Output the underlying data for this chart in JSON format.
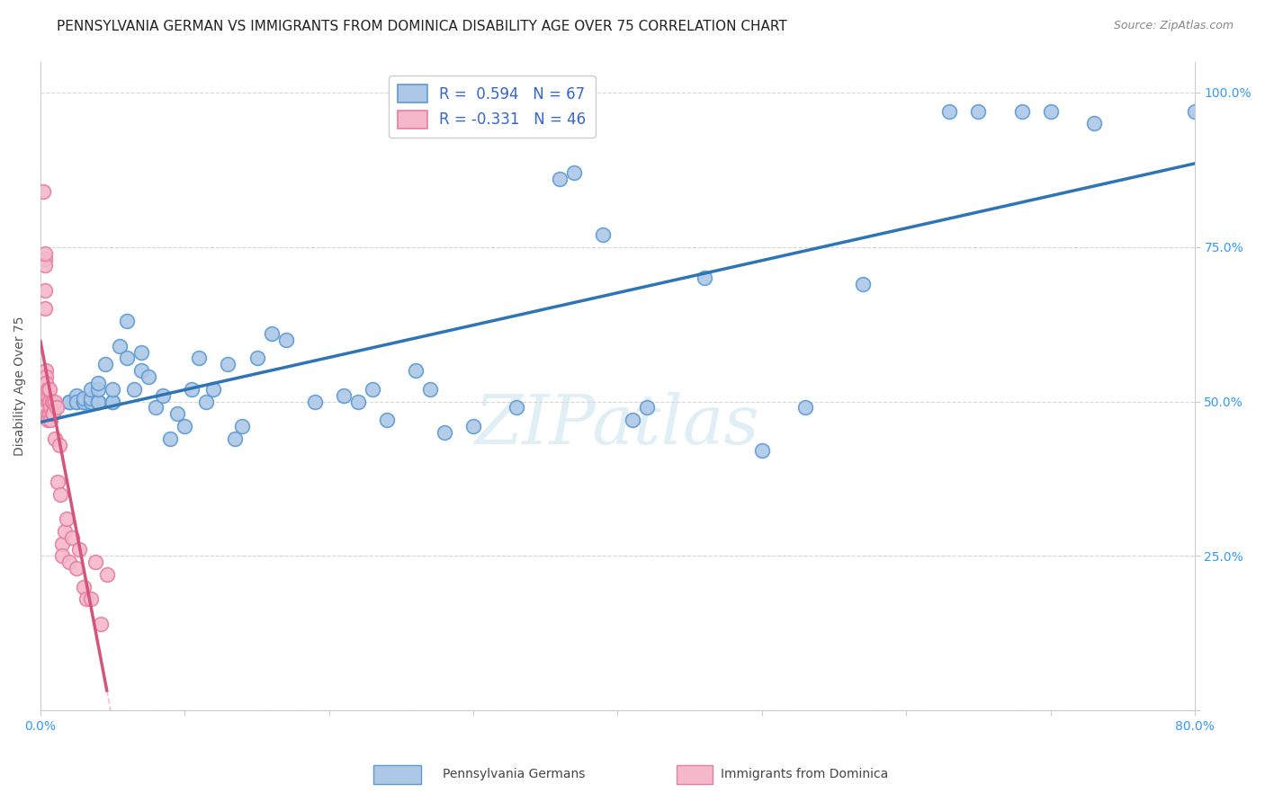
{
  "title": "PENNSYLVANIA GERMAN VS IMMIGRANTS FROM DOMINICA DISABILITY AGE OVER 75 CORRELATION CHART",
  "source": "Source: ZipAtlas.com",
  "ylabel": "Disability Age Over 75",
  "xlim": [
    0.0,
    0.8
  ],
  "ylim": [
    0.0,
    1.05
  ],
  "xticks": [
    0.0,
    0.1,
    0.2,
    0.3,
    0.4,
    0.5,
    0.6,
    0.7,
    0.8
  ],
  "xticklabels": [
    "0.0%",
    "",
    "",
    "",
    "",
    "",
    "",
    "",
    "80.0%"
  ],
  "yticks": [
    0.0,
    0.25,
    0.5,
    0.75,
    1.0
  ],
  "yticklabels_right": [
    "",
    "25.0%",
    "50.0%",
    "75.0%",
    "100.0%"
  ],
  "blue_R": 0.594,
  "blue_N": 67,
  "pink_R": -0.331,
  "pink_N": 46,
  "blue_color": "#adc8e6",
  "blue_edge_color": "#5b9bd5",
  "blue_line_color": "#2e75b6",
  "pink_color": "#f4b8ca",
  "pink_edge_color": "#e87da0",
  "pink_line_color": "#d4547a",
  "blue_scatter_x": [
    0.02,
    0.02,
    0.025,
    0.025,
    0.025,
    0.03,
    0.03,
    0.03,
    0.03,
    0.035,
    0.035,
    0.035,
    0.04,
    0.04,
    0.04,
    0.04,
    0.045,
    0.05,
    0.05,
    0.05,
    0.055,
    0.06,
    0.06,
    0.065,
    0.07,
    0.07,
    0.075,
    0.08,
    0.085,
    0.09,
    0.095,
    0.1,
    0.105,
    0.11,
    0.115,
    0.12,
    0.13,
    0.135,
    0.14,
    0.15,
    0.16,
    0.17,
    0.19,
    0.21,
    0.22,
    0.23,
    0.24,
    0.26,
    0.27,
    0.28,
    0.3,
    0.33,
    0.36,
    0.37,
    0.39,
    0.41,
    0.42,
    0.46,
    0.5,
    0.53,
    0.57,
    0.63,
    0.65,
    0.68,
    0.7,
    0.73,
    0.8
  ],
  "blue_scatter_y": [
    0.5,
    0.5,
    0.5,
    0.51,
    0.5,
    0.5,
    0.5,
    0.5,
    0.505,
    0.5,
    0.505,
    0.52,
    0.5,
    0.5,
    0.52,
    0.53,
    0.56,
    0.5,
    0.5,
    0.52,
    0.59,
    0.63,
    0.57,
    0.52,
    0.55,
    0.58,
    0.54,
    0.49,
    0.51,
    0.44,
    0.48,
    0.46,
    0.52,
    0.57,
    0.5,
    0.52,
    0.56,
    0.44,
    0.46,
    0.57,
    0.61,
    0.6,
    0.5,
    0.51,
    0.5,
    0.52,
    0.47,
    0.55,
    0.52,
    0.45,
    0.46,
    0.49,
    0.86,
    0.87,
    0.77,
    0.47,
    0.49,
    0.7,
    0.42,
    0.49,
    0.69,
    0.97,
    0.97,
    0.97,
    0.97,
    0.95,
    0.97
  ],
  "pink_scatter_x": [
    0.002,
    0.003,
    0.003,
    0.003,
    0.003,
    0.003,
    0.004,
    0.004,
    0.004,
    0.004,
    0.004,
    0.005,
    0.005,
    0.005,
    0.005,
    0.005,
    0.006,
    0.006,
    0.006,
    0.006,
    0.007,
    0.007,
    0.008,
    0.008,
    0.009,
    0.009,
    0.01,
    0.01,
    0.011,
    0.012,
    0.013,
    0.014,
    0.015,
    0.015,
    0.017,
    0.018,
    0.02,
    0.022,
    0.025,
    0.027,
    0.03,
    0.032,
    0.035,
    0.038,
    0.042,
    0.046
  ],
  "pink_scatter_y": [
    0.84,
    0.73,
    0.72,
    0.68,
    0.65,
    0.74,
    0.55,
    0.54,
    0.52,
    0.51,
    0.53,
    0.5,
    0.48,
    0.47,
    0.51,
    0.52,
    0.48,
    0.5,
    0.5,
    0.52,
    0.49,
    0.47,
    0.5,
    0.48,
    0.5,
    0.48,
    0.5,
    0.44,
    0.49,
    0.37,
    0.43,
    0.35,
    0.27,
    0.25,
    0.29,
    0.31,
    0.24,
    0.28,
    0.23,
    0.26,
    0.2,
    0.18,
    0.18,
    0.24,
    0.14,
    0.22
  ],
  "watermark_text": "ZIPatlas",
  "legend_labels": [
    "Pennsylvania Germans",
    "Immigrants from Dominica"
  ],
  "background_color": "#ffffff",
  "grid_color": "#cccccc",
  "title_fontsize": 11,
  "axis_label_fontsize": 10,
  "tick_fontsize": 10,
  "legend_fontsize": 12
}
